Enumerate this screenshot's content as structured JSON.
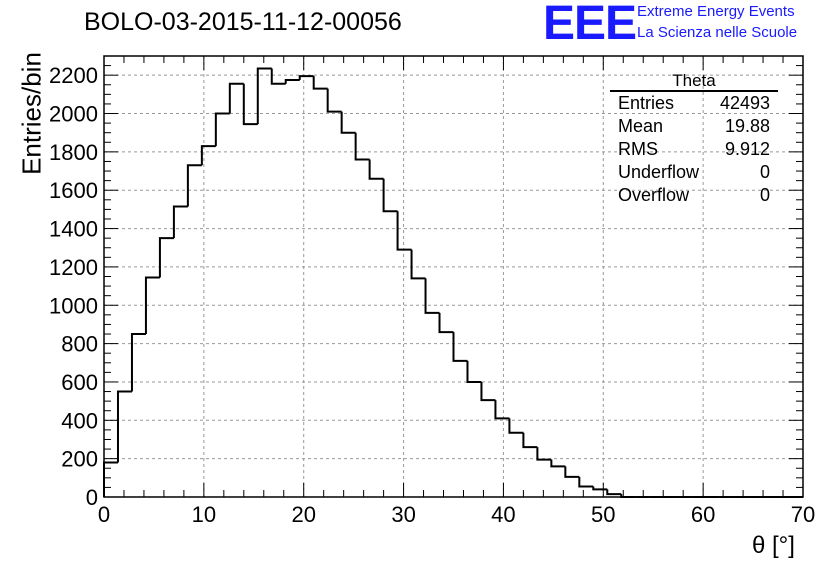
{
  "title": "BOLO-03-2015-11-12-00056",
  "logo": {
    "mark": "EEE",
    "line1": "Extreme Energy Events",
    "line2": "La Scienza nelle Scuole",
    "color": "#1a1aff"
  },
  "stats": {
    "title": "Theta",
    "rows": [
      {
        "label": "Entries",
        "value": "42493"
      },
      {
        "label": "Mean",
        "value": "19.88"
      },
      {
        "label": "RMS",
        "value": "9.912"
      },
      {
        "label": "Underflow",
        "value": "0"
      },
      {
        "label": "Overflow",
        "value": "0"
      }
    ]
  },
  "chart_data": {
    "type": "bar",
    "histogram": true,
    "title": "BOLO-03-2015-11-12-00056",
    "xlabel": "θ [°]",
    "ylabel": "Entries/bin",
    "xlim": [
      0,
      70
    ],
    "ylim": [
      0,
      2300
    ],
    "grid": true,
    "xticks": [
      0,
      10,
      20,
      30,
      40,
      50,
      60,
      70
    ],
    "yticks": [
      0,
      200,
      400,
      600,
      800,
      1000,
      1200,
      1400,
      1600,
      1800,
      2000,
      2200
    ],
    "bin_width": 1.4,
    "bin_edges_start": 0,
    "values": [
      180,
      550,
      850,
      1145,
      1350,
      1515,
      1730,
      1830,
      2000,
      2155,
      1945,
      2235,
      2155,
      2175,
      2195,
      2130,
      2010,
      1900,
      1760,
      1660,
      1490,
      1290,
      1140,
      960,
      860,
      710,
      600,
      505,
      410,
      335,
      260,
      195,
      160,
      105,
      55,
      40,
      15,
      0,
      0,
      0,
      0,
      0,
      0,
      0,
      0,
      0,
      0,
      0,
      0,
      0
    ]
  }
}
